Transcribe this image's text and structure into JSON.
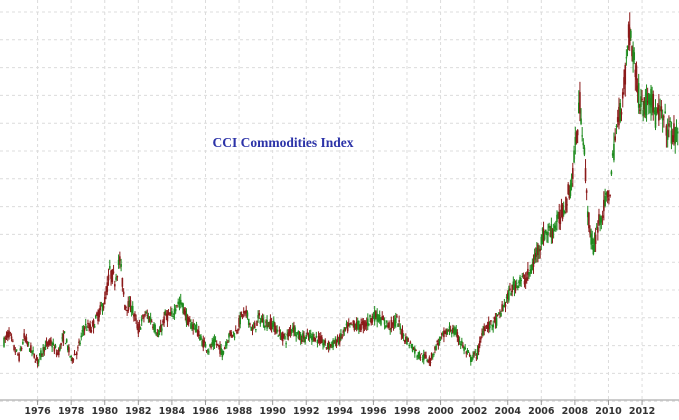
{
  "chart_data": {
    "type": "line",
    "title": "CCI Commodities Index",
    "xlabel": "",
    "ylabel": "",
    "xlim": [
      1974.0,
      2014.2
    ],
    "ylim": [
      120,
      720
    ],
    "grid": true,
    "tick_labels_x": [
      "1976",
      "1978",
      "1980",
      "1982",
      "1984",
      "1986",
      "1988",
      "1990",
      "1992",
      "1994",
      "1996",
      "1998",
      "2000",
      "2002",
      "2004",
      "2006",
      "2008",
      "2010",
      "2012"
    ],
    "up_color": "#1e8b1e",
    "down_color": "#8b1a1a",
    "series": [
      {
        "x": [
          1974.0,
          1974.3,
          1974.6,
          1974.9,
          1975.2,
          1975.6,
          1976.0,
          1976.4,
          1976.8,
          1977.2,
          1977.6,
          1978.0,
          1978.4,
          1978.8,
          1979.2,
          1979.6,
          1980.0,
          1980.3,
          1980.6,
          1980.9,
          1981.2,
          1981.6,
          1982.0,
          1982.4,
          1982.8,
          1983.2,
          1983.6,
          1984.0,
          1984.3,
          1984.6,
          1985.0,
          1985.4,
          1985.8,
          1986.2,
          1986.6,
          1987.0,
          1987.4,
          1987.8,
          1988.2,
          1988.5,
          1988.8,
          1989.2,
          1989.6,
          1990.0,
          1990.4,
          1990.8,
          1991.2,
          1991.6,
          1992.0,
          1992.4,
          1992.8,
          1993.2,
          1993.6,
          1994.0,
          1994.4,
          1994.8,
          1995.2,
          1995.6,
          1996.0,
          1996.3,
          1996.6,
          1997.0,
          1997.4,
          1997.8,
          1998.2,
          1998.6,
          1999.0,
          1999.4,
          1999.8,
          2000.2,
          2000.6,
          2001.0,
          2001.4,
          2001.8,
          2002.2,
          2002.6,
          2003.0,
          2003.4,
          2003.8,
          2004.2,
          2004.6,
          2005.0,
          2005.4,
          2005.8,
          2006.2,
          2006.6,
          2007.0,
          2007.4,
          2007.8,
          2008.1,
          2008.3,
          2008.5,
          2008.7,
          2008.9,
          2009.1,
          2009.3,
          2009.5,
          2009.8,
          2010.1,
          2010.4,
          2010.7,
          2011.0,
          2011.2,
          2011.4,
          2011.6,
          2011.8,
          2012.0,
          2012.2,
          2012.4,
          2012.6,
          2012.8,
          2013.0,
          2013.3,
          2013.6,
          2013.9,
          2014.2
        ],
        "y": [
          208,
          222,
          198,
          185,
          215,
          196,
          178,
          200,
          207,
          190,
          218,
          181,
          196,
          232,
          228,
          248,
          270,
          314,
          302,
          333,
          264,
          262,
          226,
          250,
          241,
          216,
          247,
          247,
          267,
          265,
          236,
          231,
          208,
          197,
          208,
          191,
          218,
          223,
          250,
          248,
          224,
          244,
          236,
          235,
          220,
          212,
          232,
          215,
          215,
          217,
          211,
          202,
          205,
          212,
          228,
          234,
          232,
          236,
          248,
          246,
          238,
          232,
          241,
          217,
          205,
          190,
          185,
          181,
          205,
          218,
          228,
          218,
          198,
          182,
          191,
          232,
          233,
          242,
          264,
          286,
          300,
          302,
          316,
          350,
          372,
          376,
          390,
          415,
          450,
          520,
          570,
          520,
          430,
          372,
          348,
          378,
          395,
          415,
          440,
          520,
          560,
          610,
          680,
          660,
          620,
          580,
          572,
          562,
          585,
          578,
          545,
          555,
          542,
          528,
          522,
          514
        ]
      }
    ]
  }
}
